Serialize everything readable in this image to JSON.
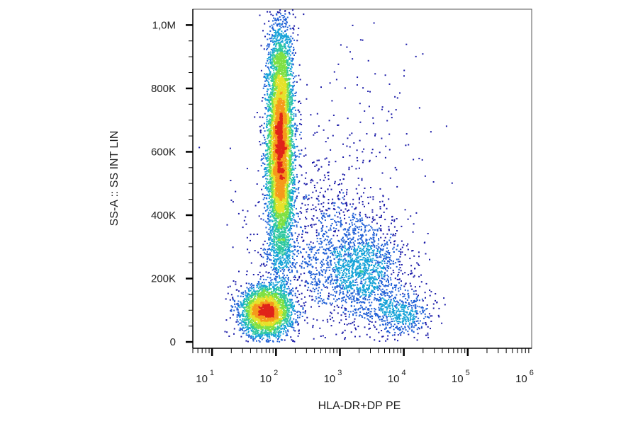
{
  "chart_data": {
    "type": "scatter",
    "subtype": "flow-cytometry-density-dot-plot",
    "title": "",
    "xlabel": "HLA-DR+DP PE",
    "ylabel": "SS-A :: SS INT LIN",
    "x_scale": "log",
    "x_range": [
      5,
      1000000
    ],
    "x_tick_labels": [
      {
        "value": 10,
        "base": "10",
        "exponent": "1"
      },
      {
        "value": 100,
        "base": "10",
        "exponent": "2"
      },
      {
        "value": 1000,
        "base": "10",
        "exponent": "3"
      },
      {
        "value": 10000,
        "base": "10",
        "exponent": "4"
      },
      {
        "value": 100000,
        "base": "10",
        "exponent": "5"
      },
      {
        "value": 1000000,
        "base": "10",
        "exponent": "6"
      }
    ],
    "y_scale": "linear",
    "y_range": [
      -20000,
      1050000
    ],
    "y_ticks": [
      {
        "value": 0,
        "label": "0"
      },
      {
        "value": 200000,
        "label": "200K"
      },
      {
        "value": 400000,
        "label": "400K"
      },
      {
        "value": 600000,
        "label": "600K"
      },
      {
        "value": 800000,
        "label": "800K"
      },
      {
        "value": 1000000,
        "label": "1,0M"
      }
    ],
    "color_scale": [
      "#1a1aa8",
      "#1f5fd6",
      "#17a3d8",
      "#2fc8a0",
      "#7fe043",
      "#e6e22a",
      "#f59a1c",
      "#e0241a"
    ],
    "populations": [
      {
        "x_log_center": 2.07,
        "y_center": 620000,
        "x_log_sd": 0.1,
        "y_sd": 190000,
        "count": 7000,
        "peak_color": "#e0241a"
      },
      {
        "x_log_center": 1.85,
        "y_center": 95000,
        "x_log_sd": 0.2,
        "y_sd": 40000,
        "count": 2800,
        "peak_color": "#e6e22a"
      },
      {
        "x_log_center": 3.35,
        "y_center": 230000,
        "x_log_sd": 0.35,
        "y_sd": 75000,
        "count": 1300,
        "peak_color": "#17a3d8"
      },
      {
        "x_log_center": 3.95,
        "y_center": 90000,
        "x_log_sd": 0.25,
        "y_sd": 35000,
        "count": 500,
        "peak_color": "#17a3d8"
      },
      {
        "x_log_center": 2.7,
        "y_center": 280000,
        "x_log_sd": 0.55,
        "y_sd": 160000,
        "count": 1000,
        "peak_color": "#1f5fd6"
      },
      {
        "x_log_center": 3.3,
        "y_center": 500000,
        "x_log_sd": 0.6,
        "y_sd": 250000,
        "count": 200,
        "peak_color": "#1a1aa8"
      }
    ]
  }
}
